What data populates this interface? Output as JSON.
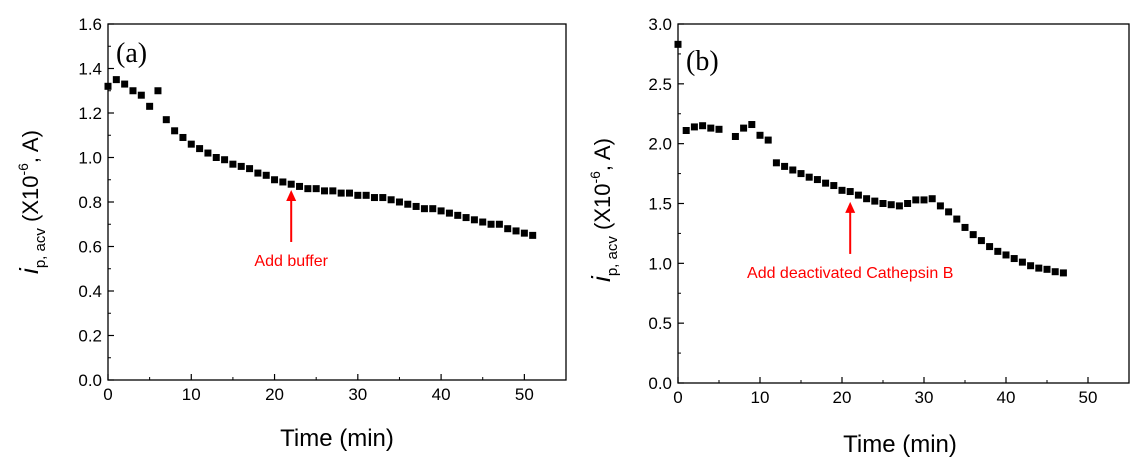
{
  "chart_data": [
    {
      "type": "scatter",
      "panel_label": "(a)",
      "xlabel": "Time (min)",
      "ylabel": {
        "symbol": "i",
        "subscript": "p, acv",
        "rest": " (X10",
        "exponent": "-6",
        "tail": ", A)"
      },
      "xlim": [
        0,
        55
      ],
      "ylim": [
        0,
        1.6
      ],
      "xticks": [
        "0",
        "10",
        "20",
        "30",
        "40",
        "50"
      ],
      "yticks": [
        "0.0",
        "0.2",
        "0.4",
        "0.6",
        "0.8",
        "1.0",
        "1.2",
        "1.4",
        "1.6"
      ],
      "marker_color": "#000000",
      "annotation": {
        "text": "Add buffer",
        "color": "#ff0000",
        "x": 22,
        "y": 0.89
      },
      "x": [
        0,
        1,
        2,
        3,
        4,
        5,
        6,
        7,
        8,
        9,
        10,
        11,
        12,
        13,
        14,
        15,
        16,
        17,
        18,
        19,
        20,
        21,
        22,
        23,
        24,
        25,
        26,
        27,
        28,
        29,
        30,
        31,
        32,
        33,
        34,
        35,
        36,
        37,
        38,
        39,
        40,
        41,
        42,
        43,
        44,
        45,
        46,
        47,
        48,
        49,
        50,
        51
      ],
      "y": [
        1.32,
        1.35,
        1.33,
        1.3,
        1.28,
        1.23,
        1.3,
        1.17,
        1.12,
        1.09,
        1.06,
        1.04,
        1.02,
        1.0,
        0.99,
        0.97,
        0.96,
        0.95,
        0.93,
        0.92,
        0.9,
        0.89,
        0.88,
        0.87,
        0.86,
        0.86,
        0.85,
        0.85,
        0.84,
        0.84,
        0.83,
        0.83,
        0.82,
        0.82,
        0.81,
        0.8,
        0.79,
        0.78,
        0.77,
        0.77,
        0.76,
        0.75,
        0.74,
        0.73,
        0.72,
        0.71,
        0.7,
        0.7,
        0.68,
        0.67,
        0.66,
        0.65
      ]
    },
    {
      "type": "scatter",
      "panel_label": "(b)",
      "xlabel": "Time (min)",
      "ylabel": {
        "symbol": "i",
        "subscript": "p, acv",
        "rest": " (X10",
        "exponent": "-6",
        "tail": ", A)"
      },
      "xlim": [
        0,
        55
      ],
      "ylim": [
        0,
        3.0
      ],
      "xticks": [
        "0",
        "10",
        "20",
        "30",
        "40",
        "50"
      ],
      "yticks": [
        "0.0",
        "0.5",
        "1.0",
        "1.5",
        "2.0",
        "2.5",
        "3.0"
      ],
      "marker_color": "#000000",
      "annotation": {
        "text": "Add deactivated Cathepsin B",
        "color": "#ff0000",
        "x": 21,
        "y": 1.58
      },
      "x": [
        0,
        1,
        2,
        3,
        4,
        5,
        7,
        8,
        9,
        10,
        11,
        12,
        13,
        14,
        15,
        16,
        17,
        18,
        19,
        20,
        21,
        22,
        23,
        24,
        25,
        26,
        27,
        28,
        29,
        30,
        31,
        32,
        33,
        34,
        35,
        36,
        37,
        38,
        39,
        40,
        41,
        42,
        43,
        44,
        45,
        46,
        47
      ],
      "y": [
        2.83,
        2.11,
        2.14,
        2.15,
        2.13,
        2.12,
        2.06,
        2.13,
        2.16,
        2.07,
        2.03,
        1.84,
        1.81,
        1.78,
        1.75,
        1.72,
        1.7,
        1.67,
        1.65,
        1.61,
        1.6,
        1.57,
        1.54,
        1.52,
        1.5,
        1.49,
        1.48,
        1.5,
        1.53,
        1.53,
        1.54,
        1.48,
        1.43,
        1.37,
        1.3,
        1.24,
        1.19,
        1.14,
        1.1,
        1.07,
        1.04,
        1.01,
        0.98,
        0.96,
        0.95,
        0.93,
        0.92
      ]
    }
  ]
}
